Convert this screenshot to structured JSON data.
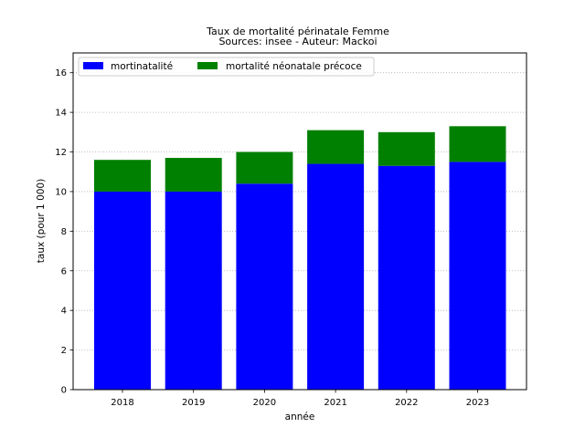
{
  "chart_data": {
    "type": "bar",
    "stacked": true,
    "title": "Taux de mortalité périnatale Femme",
    "subtitle": "Sources: insee - Auteur: Mackoi",
    "xlabel": "année",
    "ylabel": "taux (pour 1 000)",
    "categories": [
      "2018",
      "2019",
      "2020",
      "2021",
      "2022",
      "2023"
    ],
    "ylim": [
      0,
      17
    ],
    "yticks": [
      0,
      2,
      4,
      6,
      8,
      10,
      12,
      14,
      16
    ],
    "grid": "horizontal dotted",
    "legend_position": "top-left",
    "series": [
      {
        "name": "mortinatalité",
        "color": "#0000ff",
        "values": [
          10.0,
          10.0,
          10.4,
          11.4,
          11.3,
          11.5
        ]
      },
      {
        "name": "mortalité néonatale précoce",
        "color": "#008000",
        "values": [
          1.6,
          1.7,
          1.6,
          1.7,
          1.7,
          1.8
        ]
      }
    ]
  }
}
